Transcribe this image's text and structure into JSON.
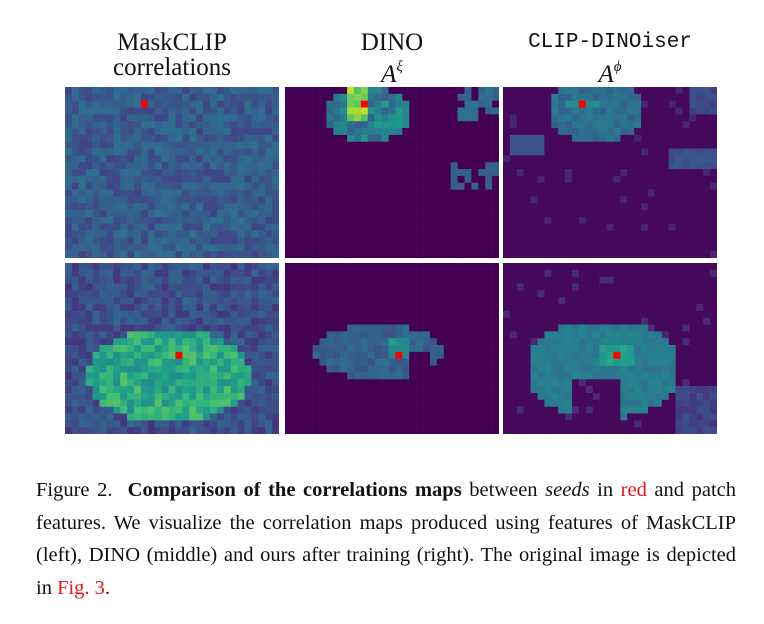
{
  "figure": {
    "columns": [
      {
        "title_line1": "MaskCLIP",
        "title_line2": "correlations"
      },
      {
        "title_line1": "DINO",
        "symbol": "A",
        "superscript": "ξ"
      },
      {
        "title_line1": "CLIP-DINOiser",
        "symbol": "A",
        "superscript": "ϕ"
      }
    ],
    "seed_color": "#ff0000",
    "colormap": "viridis"
  },
  "caption": {
    "label": "Figure 2.",
    "bold_title": "Comparison of the correlations maps",
    "t1": " between ",
    "seeds": "seeds",
    "t2": " in ",
    "red_word": "red",
    "t3": " and patch features. We visualize the correlation maps produced using features of MaskCLIP (left), DINO (middle) and ours after training (right). The original image is depicted in ",
    "fig_ref": "Fig. 3",
    "t4": "."
  }
}
